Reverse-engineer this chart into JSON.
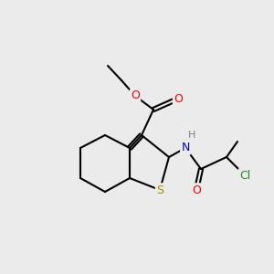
{
  "background_color": "#ebebeb",
  "bond_color": "#000000",
  "bond_width": 1.5,
  "atom_colors": {
    "O": "#ff0000",
    "N": "#0000cc",
    "S": "#aaaa00",
    "Cl": "#228822",
    "H": "#808080"
  },
  "font_size": 9,
  "figsize": [
    3.0,
    3.0
  ],
  "dpi": 100
}
